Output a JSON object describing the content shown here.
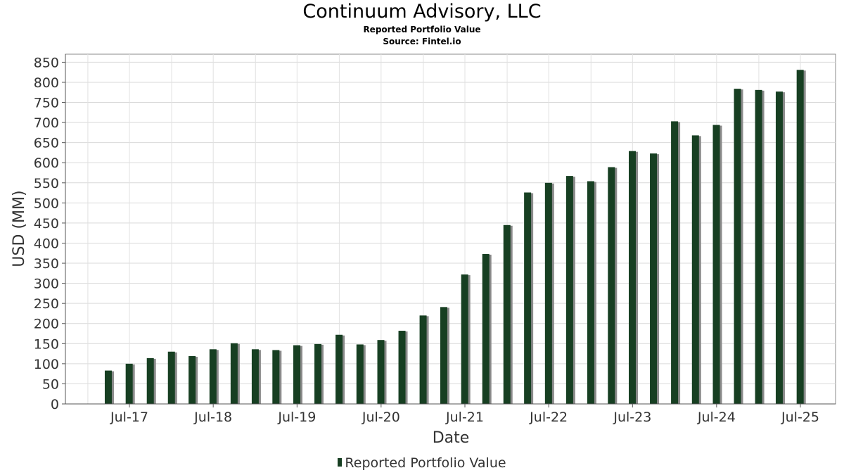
{
  "chart_data": {
    "type": "bar",
    "title": "Continuum Advisory, LLC",
    "subtitle": "Reported Portfolio Value",
    "source": "Source: Fintel.io",
    "xlabel": "Date",
    "ylabel": "USD (MM)",
    "ylim": [
      0,
      870
    ],
    "yticks": [
      0,
      50,
      100,
      150,
      200,
      250,
      300,
      350,
      400,
      450,
      500,
      550,
      600,
      650,
      700,
      750,
      800,
      850
    ],
    "xtick_labels": [
      "Jul-17",
      "Jul-18",
      "Jul-19",
      "Jul-20",
      "Jul-21",
      "Jul-22",
      "Jul-23",
      "Jul-24",
      "Jul-25"
    ],
    "grid": true,
    "legend_position": "bottom",
    "bar_color": "#173f22",
    "shadow_color": "#8a8a8a",
    "series": [
      {
        "name": "Reported Portfolio Value",
        "x": [
          "2017-03-31",
          "2017-06-30",
          "2017-09-30",
          "2017-12-31",
          "2018-03-31",
          "2018-06-30",
          "2018-09-30",
          "2018-12-31",
          "2019-03-31",
          "2019-06-30",
          "2019-09-30",
          "2019-12-31",
          "2020-03-31",
          "2020-06-30",
          "2020-09-30",
          "2020-12-31",
          "2021-03-31",
          "2021-06-30",
          "2021-09-30",
          "2021-12-31",
          "2022-03-31",
          "2022-06-30",
          "2022-09-30",
          "2022-12-31",
          "2023-03-31",
          "2023-06-30",
          "2023-09-30",
          "2023-12-31",
          "2024-03-31",
          "2024-06-30",
          "2024-09-30",
          "2024-12-31",
          "2025-03-31",
          "2025-06-30"
        ],
        "values": [
          83,
          100,
          114,
          130,
          119,
          136,
          151,
          136,
          134,
          146,
          149,
          172,
          148,
          159,
          182,
          220,
          241,
          322,
          373,
          445,
          526,
          550,
          567,
          554,
          589,
          629,
          623,
          703,
          668,
          694,
          784,
          781,
          777,
          831
        ]
      }
    ]
  }
}
